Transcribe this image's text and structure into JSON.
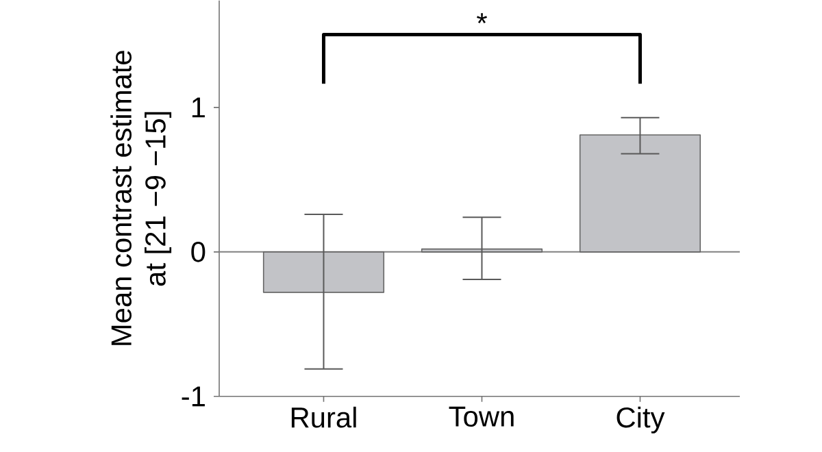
{
  "chart_data": {
    "type": "bar",
    "ylabel": "Mean contrast estimate\nat [21 −9 −15]",
    "categories": [
      "Rural",
      "Town",
      "City"
    ],
    "values": [
      -0.28,
      0.02,
      0.81
    ],
    "errors": [
      [
        -0.81,
        0.26
      ],
      [
        -0.19,
        0.24
      ],
      [
        0.68,
        0.93
      ]
    ],
    "color": "#c2c3c7",
    "ylim": [
      -1,
      1.74
    ],
    "yticks": [
      -1,
      0,
      1
    ],
    "ref_lines": [
      {
        "axis": "y",
        "value": 0,
        "color": "#808080"
      }
    ],
    "annotations": [
      "*"
    ],
    "grid": false,
    "legend": false
  }
}
